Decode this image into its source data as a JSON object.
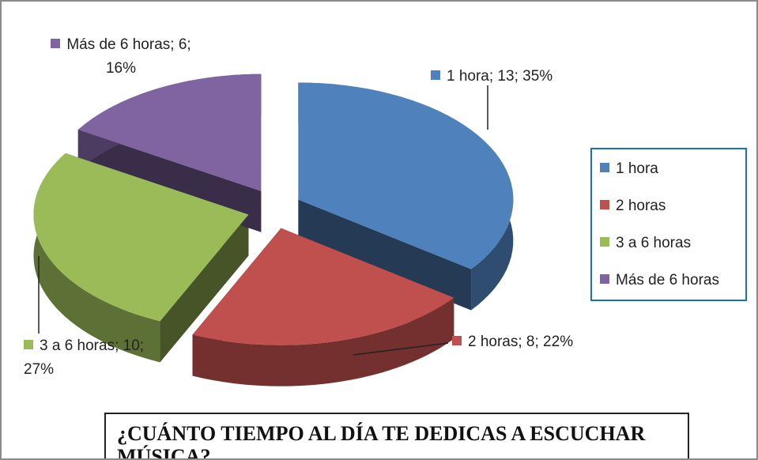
{
  "chart_data": {
    "type": "pie",
    "title": "¿CUÁNTO TIEMPO AL DÍA TE DEDICAS A ESCUCHAR MÚSICA?",
    "categories": [
      "1 hora",
      "2 horas",
      "3 a 6 horas",
      "Más de 6 horas"
    ],
    "values": [
      13,
      8,
      10,
      6
    ],
    "value_labels": [
      "1 hora; 13; 35%",
      "2 horas; 8; 22%",
      "3 a 6 horas; 10; 27%",
      "Más de 6 horas; 6; 16%"
    ],
    "colors": [
      "#4f81bd",
      "#c0504d",
      "#9bbb59",
      "#8064a2"
    ],
    "legend": "right"
  }
}
